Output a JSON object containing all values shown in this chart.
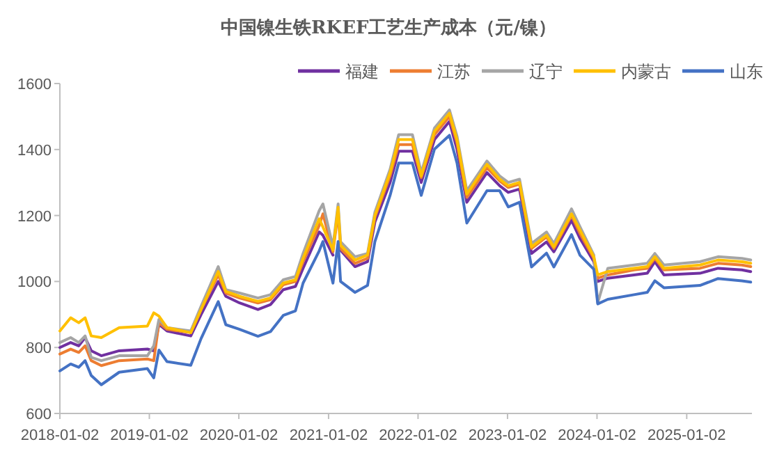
{
  "chart_data": {
    "type": "line",
    "title": "中国镍生铁RKEF工艺生产成本（元/镍）",
    "x": [
      "2018-01-02",
      "2018-02-15",
      "2018-03-20",
      "2018-04-15",
      "2018-05-10",
      "2018-06-20",
      "2018-09-01",
      "2018-12-25",
      "2019-01-20",
      "2019-02-10",
      "2019-03-15",
      "2019-06-20",
      "2019-08-01",
      "2019-10-10",
      "2019-11-10",
      "2020-01-05",
      "2020-03-20",
      "2020-05-10",
      "2020-07-01",
      "2020-08-20",
      "2020-09-20",
      "2020-11-25",
      "2020-12-10",
      "2021-01-20",
      "2021-02-10",
      "2021-02-20",
      "2021-04-20",
      "2021-06-10",
      "2021-07-10",
      "2021-09-10",
      "2021-10-15",
      "2021-12-10",
      "2022-01-15",
      "2022-03-10",
      "2022-05-10",
      "2022-06-10",
      "2022-07-20",
      "2022-10-10",
      "2022-12-01",
      "2023-01-05",
      "2023-02-20",
      "2023-04-10",
      "2023-06-10",
      "2023-07-10",
      "2023-09-20",
      "2023-10-25",
      "2023-12-20",
      "2024-01-05",
      "2024-02-15",
      "2024-06-01",
      "2024-07-25",
      "2024-08-25",
      "2024-10-01",
      "2025-02-25",
      "2025-05-10",
      "2025-08-15",
      "2025-09-20"
    ],
    "series": [
      {
        "name": "福建",
        "color": "#7030a0",
        "values": [
          800,
          815,
          805,
          830,
          790,
          775,
          790,
          795,
          790,
          870,
          850,
          835,
          900,
          1000,
          955,
          935,
          915,
          930,
          975,
          985,
          1040,
          1150,
          1140,
          1080,
          null,
          1095,
          1045,
          1060,
          1180,
          1300,
          1395,
          1395,
          1300,
          1430,
          1485,
          1400,
          1240,
          1330,
          1290,
          1270,
          1280,
          1085,
          1120,
          1090,
          1185,
          1130,
          1060,
          1000,
          1010,
          1020,
          1025,
          1060,
          1020,
          1025,
          1040,
          1035,
          1030
        ]
      },
      {
        "name": "江苏",
        "color": "#ed7d31",
        "values": [
          780,
          795,
          785,
          805,
          760,
          745,
          760,
          765,
          760,
          875,
          855,
          845,
          915,
          1020,
          965,
          950,
          935,
          945,
          990,
          1000,
          1060,
          1170,
          1205,
          1090,
          1210,
          1100,
          1055,
          1070,
          1195,
          1320,
          1415,
          1415,
          1315,
          1445,
          1500,
          1420,
          1255,
          1345,
          1305,
          1285,
          1295,
          1100,
          1135,
          1100,
          1200,
          1145,
          1070,
          1010,
          1020,
          1035,
          1040,
          1070,
          1035,
          1040,
          1055,
          1050,
          1045
        ]
      },
      {
        "name": "辽宁",
        "color": "#a5a5a5",
        "values": [
          815,
          830,
          815,
          835,
          770,
          760,
          775,
          775,
          805,
          885,
          860,
          850,
          925,
          1045,
          975,
          965,
          950,
          960,
          1005,
          1015,
          1085,
          1215,
          1235,
          1105,
          1235,
          1120,
          1075,
          1085,
          1210,
          1340,
          1445,
          1445,
          1330,
          1465,
          1520,
          1440,
          1275,
          1365,
          1320,
          1300,
          1310,
          1115,
          1150,
          1115,
          1220,
          1165,
          1080,
          935,
          1040,
          1050,
          1055,
          1085,
          1050,
          1060,
          1075,
          1070,
          1065
        ]
      },
      {
        "name": "内蒙古",
        "color": "#ffc000",
        "values": [
          850,
          890,
          875,
          890,
          835,
          830,
          860,
          865,
          905,
          895,
          860,
          845,
          915,
          1030,
          970,
          955,
          940,
          950,
          995,
          1005,
          1070,
          1190,
          1165,
          1095,
          1225,
          1110,
          1065,
          1080,
          1200,
          1330,
          1430,
          1430,
          1320,
          1455,
          1510,
          1430,
          1265,
          1355,
          1310,
          1290,
          1300,
          1105,
          1140,
          1105,
          1205,
          1155,
          1075,
          1020,
          1030,
          1040,
          1045,
          1075,
          1040,
          1050,
          1065,
          1060,
          1055
        ]
      },
      {
        "name": "山东",
        "color": "#4472c4",
        "values": [
          729,
          750,
          740,
          760,
          715,
          687,
          725,
          736,
          708,
          792,
          757,
          746,
          827,
          939,
          869,
          855,
          834,
          848,
          897,
          911,
          995,
          1093,
          1121,
          995,
          1121,
          1000,
          967,
          988,
          1121,
          1261,
          1359,
          1359,
          1261,
          1401,
          1443,
          1359,
          1177,
          1275,
          1275,
          1226,
          1240,
          1044,
          1086,
          1044,
          1142,
          1079,
          1037,
          932,
          946,
          960,
          967,
          1002,
          981,
          988,
          1009,
          1002,
          998
        ]
      }
    ],
    "xlim": [
      "2018-01-02",
      "2025-09-25"
    ],
    "xticks": [
      "2018-01-02",
      "2019-01-02",
      "2020-01-02",
      "2021-01-02",
      "2022-01-02",
      "2023-01-02",
      "2024-01-02",
      "2025-01-02"
    ],
    "ylim": [
      600,
      1600
    ],
    "yticks": [
      600,
      800,
      1000,
      1200,
      1400,
      1600
    ],
    "grid": false,
    "legend": "top right",
    "marker": "none",
    "line_style": "solid"
  }
}
